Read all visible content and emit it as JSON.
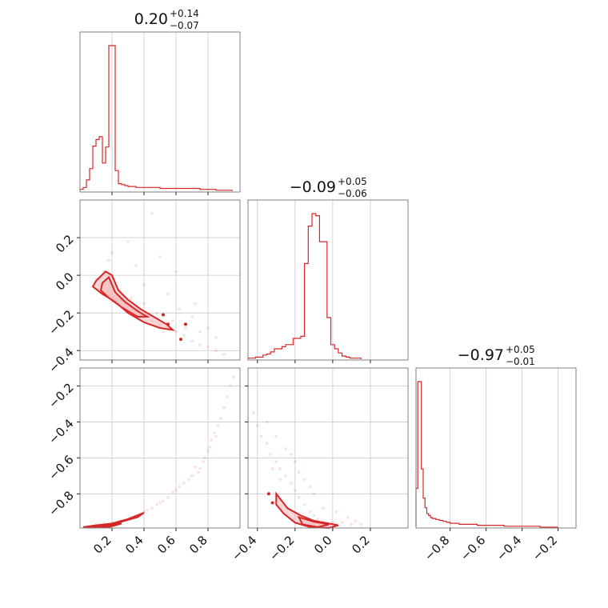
{
  "colors": {
    "accent": "#d62728",
    "fill": "#f4b6b7",
    "grid": "#c8c8c8",
    "frame": "#808080"
  },
  "chart_data": {
    "type": "corner",
    "parameters": [
      {
        "title_value": "0.20",
        "title_plus": "+0.14",
        "title_minus": "−0.07",
        "range": [
          0.0,
          1.0
        ]
      },
      {
        "title_value": "−0.09",
        "title_plus": "+0.05",
        "title_minus": "−0.06",
        "range": [
          -0.45,
          0.4
        ]
      },
      {
        "title_value": "−0.97",
        "title_plus": "+0.05",
        "title_minus": "−0.01",
        "range": [
          -0.99,
          -0.1
        ]
      }
    ],
    "ticks": {
      "p0_x": {
        "values": [
          0.2,
          0.4,
          0.6,
          0.8
        ],
        "labels": [
          "0.2",
          "0.4",
          "0.6",
          "0.8"
        ]
      },
      "p1_x": {
        "values": [
          -0.4,
          -0.2,
          0.0,
          0.2
        ],
        "labels": [
          "−0.4",
          "−0.2",
          "0.0",
          "0.2"
        ]
      },
      "p2_x": {
        "values": [
          -0.8,
          -0.6,
          -0.4,
          -0.2
        ],
        "labels": [
          "−0.8",
          "−0.6",
          "−0.4",
          "−0.2"
        ]
      },
      "p1_y": {
        "values": [
          0.2,
          0.0,
          -0.2,
          -0.4
        ],
        "labels": [
          "0.2",
          "0.0",
          "−0.2",
          "−0.4"
        ]
      },
      "p2_y": {
        "values": [
          -0.2,
          -0.4,
          -0.6,
          -0.8
        ],
        "labels": [
          "−0.2",
          "−0.4",
          "−0.6",
          "−0.8"
        ]
      }
    },
    "hist_p0": {
      "edges": [
        0.0,
        0.02,
        0.04,
        0.06,
        0.08,
        0.1,
        0.12,
        0.14,
        0.16,
        0.18,
        0.2,
        0.22,
        0.24,
        0.26,
        0.28,
        0.3,
        0.35,
        0.4,
        0.45,
        0.5,
        0.55,
        0.6,
        0.65,
        0.7,
        0.75,
        0.8,
        0.85,
        0.9,
        0.95
      ],
      "counts": [
        2,
        4,
        12,
        24,
        48,
        55,
        58,
        30,
        47,
        155,
        155,
        22,
        8,
        7,
        6,
        5,
        4,
        4,
        4,
        3,
        3,
        3,
        3,
        3,
        2,
        2,
        1,
        1
      ]
    },
    "hist_p1": {
      "edges": [
        -0.45,
        -0.43,
        -0.41,
        -0.39,
        -0.37,
        -0.35,
        -0.33,
        -0.31,
        -0.29,
        -0.27,
        -0.25,
        -0.23,
        -0.21,
        -0.19,
        -0.17,
        -0.15,
        -0.13,
        -0.11,
        -0.09,
        -0.07,
        -0.05,
        -0.03,
        -0.01,
        0.01,
        0.03,
        0.05,
        0.07,
        0.09,
        0.11,
        0.13,
        0.15
      ],
      "counts": [
        1,
        1,
        2,
        2,
        4,
        5,
        7,
        10,
        10,
        12,
        14,
        14,
        20,
        20,
        22,
        92,
        128,
        140,
        138,
        113,
        113,
        40,
        14,
        10,
        6,
        3,
        2,
        1,
        1,
        1
      ]
    },
    "hist_p2": {
      "edges": [
        -0.99,
        -0.98,
        -0.97,
        -0.96,
        -0.95,
        -0.94,
        -0.93,
        -0.92,
        -0.91,
        -0.9,
        -0.88,
        -0.86,
        -0.84,
        -0.82,
        -0.8,
        -0.75,
        -0.7,
        -0.65,
        -0.6,
        -0.55,
        -0.5,
        -0.45,
        -0.4,
        -0.35,
        -0.3,
        -0.25,
        -0.2
      ],
      "counts": [
        40,
        150,
        150,
        60,
        30,
        20,
        14,
        12,
        10,
        9,
        8,
        7,
        6,
        5,
        4,
        3,
        3,
        2,
        2,
        2,
        1,
        1,
        1,
        1,
        0,
        0
      ]
    },
    "scatter_p0_p1": [
      [
        0.1,
        -0.02
      ],
      [
        0.12,
        -0.05
      ],
      [
        0.15,
        0.02
      ],
      [
        0.17,
        -0.08
      ],
      [
        0.2,
        -0.1
      ],
      [
        0.22,
        -0.12
      ],
      [
        0.25,
        -0.13
      ],
      [
        0.28,
        -0.15
      ],
      [
        0.3,
        -0.16
      ],
      [
        0.33,
        -0.18
      ],
      [
        0.36,
        -0.19
      ],
      [
        0.38,
        -0.21
      ],
      [
        0.42,
        -0.22
      ],
      [
        0.45,
        -0.24
      ],
      [
        0.5,
        -0.26
      ],
      [
        0.55,
        -0.27
      ],
      [
        0.6,
        -0.3
      ],
      [
        0.65,
        -0.32
      ],
      [
        0.7,
        -0.35
      ],
      [
        0.75,
        -0.37
      ],
      [
        0.8,
        -0.38
      ],
      [
        0.85,
        -0.4
      ],
      [
        0.3,
        0.18
      ],
      [
        0.35,
        0.05
      ],
      [
        0.4,
        -0.05
      ],
      [
        0.2,
        0.12
      ],
      [
        0.45,
        0.33
      ],
      [
        0.55,
        -0.1
      ],
      [
        0.62,
        -0.18
      ],
      [
        0.7,
        -0.22
      ],
      [
        0.75,
        -0.3
      ],
      [
        0.9,
        -0.42
      ],
      [
        0.25,
        -0.08
      ],
      [
        0.32,
        -0.12
      ],
      [
        0.48,
        -0.2
      ],
      [
        0.58,
        -0.24
      ],
      [
        0.66,
        -0.28
      ],
      [
        0.18,
        0.08
      ],
      [
        0.5,
        0.1
      ],
      [
        0.6,
        0.02
      ],
      [
        0.72,
        -0.15
      ],
      [
        0.8,
        -0.28
      ],
      [
        0.85,
        -0.33
      ],
      [
        0.4,
        -0.15
      ],
      [
        0.52,
        -0.3
      ]
    ],
    "scatter_p0_p2": [
      [
        0.1,
        -0.97
      ],
      [
        0.15,
        -0.96
      ],
      [
        0.2,
        -0.96
      ],
      [
        0.25,
        -0.95
      ],
      [
        0.3,
        -0.94
      ],
      [
        0.35,
        -0.92
      ],
      [
        0.4,
        -0.9
      ],
      [
        0.45,
        -0.88
      ],
      [
        0.5,
        -0.85
      ],
      [
        0.55,
        -0.82
      ],
      [
        0.6,
        -0.78
      ],
      [
        0.65,
        -0.74
      ],
      [
        0.7,
        -0.7
      ],
      [
        0.75,
        -0.66
      ],
      [
        0.78,
        -0.6
      ],
      [
        0.8,
        -0.56
      ],
      [
        0.82,
        -0.5
      ],
      [
        0.84,
        -0.46
      ],
      [
        0.86,
        -0.42
      ],
      [
        0.88,
        -0.38
      ],
      [
        0.9,
        -0.32
      ],
      [
        0.92,
        -0.26
      ],
      [
        0.94,
        -0.2
      ],
      [
        0.96,
        -0.15
      ],
      [
        0.72,
        -0.65
      ],
      [
        0.68,
        -0.72
      ],
      [
        0.62,
        -0.76
      ],
      [
        0.58,
        -0.79
      ],
      [
        0.52,
        -0.84
      ],
      [
        0.48,
        -0.86
      ],
      [
        0.42,
        -0.89
      ],
      [
        0.38,
        -0.91
      ],
      [
        0.32,
        -0.93
      ],
      [
        0.85,
        -0.48
      ],
      [
        0.81,
        -0.54
      ],
      [
        0.77,
        -0.62
      ],
      [
        0.74,
        -0.68
      ]
    ],
    "scatter_p1_p2": [
      [
        -0.42,
        -0.35
      ],
      [
        -0.4,
        -0.42
      ],
      [
        -0.38,
        -0.48
      ],
      [
        -0.35,
        -0.52
      ],
      [
        -0.33,
        -0.58
      ],
      [
        -0.3,
        -0.62
      ],
      [
        -0.28,
        -0.66
      ],
      [
        -0.25,
        -0.7
      ],
      [
        -0.22,
        -0.74
      ],
      [
        -0.2,
        -0.78
      ],
      [
        -0.18,
        -0.82
      ],
      [
        -0.15,
        -0.86
      ],
      [
        -0.12,
        -0.9
      ],
      [
        -0.1,
        -0.92
      ],
      [
        -0.08,
        -0.94
      ],
      [
        -0.05,
        -0.95
      ],
      [
        0.0,
        -0.96
      ],
      [
        0.05,
        -0.96
      ],
      [
        0.1,
        -0.97
      ],
      [
        0.15,
        -0.97
      ],
      [
        -0.3,
        -0.48
      ],
      [
        -0.25,
        -0.55
      ],
      [
        -0.2,
        -0.62
      ],
      [
        -0.15,
        -0.72
      ],
      [
        -0.1,
        -0.8
      ],
      [
        -0.05,
        -0.88
      ],
      [
        -0.35,
        -0.4
      ],
      [
        -0.28,
        -0.72
      ],
      [
        -0.18,
        -0.68
      ],
      [
        -0.12,
        -0.76
      ],
      [
        0.02,
        -0.9
      ],
      [
        0.08,
        -0.93
      ],
      [
        -0.22,
        -0.58
      ],
      [
        -0.32,
        -0.66
      ],
      [
        0.12,
        -0.95
      ]
    ]
  }
}
